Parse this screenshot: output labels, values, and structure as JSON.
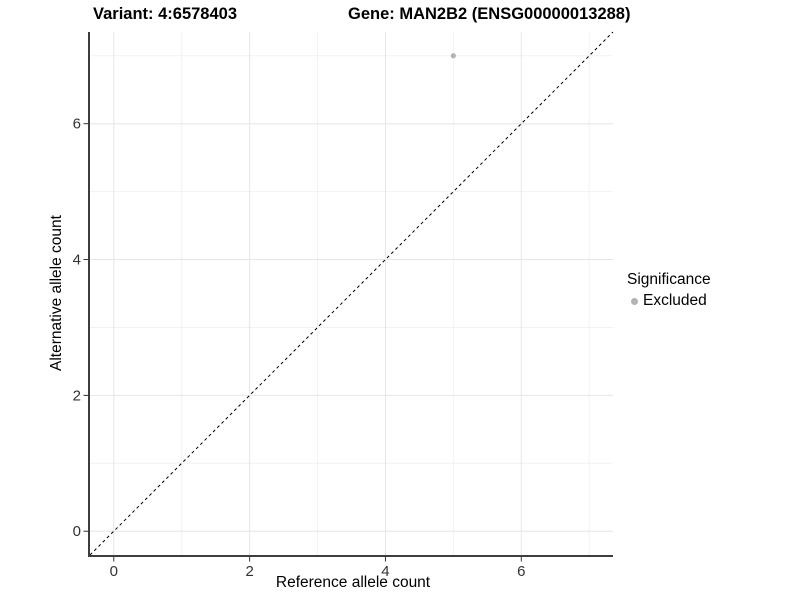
{
  "title": {
    "left": "Variant: 4:6578403",
    "right": "Gene: MAN2B2 (ENSG00000013288)"
  },
  "chart_data": {
    "type": "scatter",
    "title": "Variant: 4:6578403 | Gene: MAN2B2 (ENSG00000013288)",
    "xlabel": "Reference allele count",
    "ylabel": "Alternative allele count",
    "xlim": [
      -0.35,
      7.35
    ],
    "ylim": [
      -0.35,
      7.35
    ],
    "x_major_ticks": [
      0,
      2,
      4,
      6
    ],
    "y_major_ticks": [
      0,
      2,
      4,
      6
    ],
    "x_minor_ticks": [
      1,
      3,
      5,
      7
    ],
    "y_minor_ticks": [
      1,
      3,
      5,
      7
    ],
    "grid": "major and minor gridlines, white panel",
    "series": [
      {
        "name": "Excluded",
        "color": "#b3b3b3",
        "points": [
          {
            "x": 5,
            "y": 7
          }
        ]
      }
    ],
    "reference_line": {
      "kind": "identity y = x",
      "style": "dashed",
      "color": "#000000"
    },
    "legend": {
      "title": "Significance",
      "position": "right",
      "entries": [
        {
          "label": "Excluded",
          "color": "#b3b3b3"
        }
      ]
    }
  },
  "colors": {
    "background": "#ffffff",
    "grid_major": "#e6e6e6",
    "grid_minor": "#f2f2f2",
    "axis_line": "#3d3d3d",
    "tick_mark": "#333333",
    "tick_text": "#333333",
    "point": "#b3b3b3"
  }
}
